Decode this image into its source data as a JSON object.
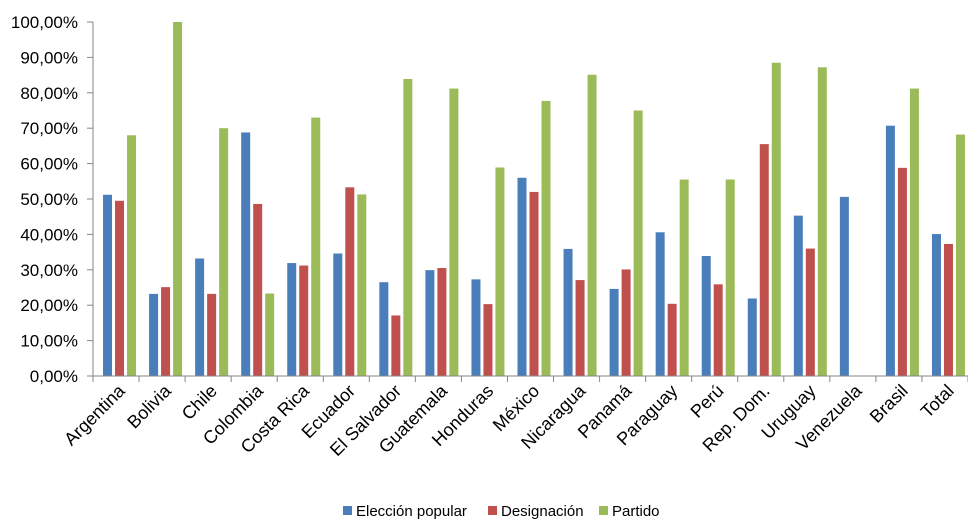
{
  "chart_data": {
    "type": "bar",
    "title": "",
    "xlabel": "",
    "ylabel": "",
    "ylim": [
      0,
      100
    ],
    "yticks": [
      "0,00%",
      "10,00%",
      "20,00%",
      "30,00%",
      "40,00%",
      "50,00%",
      "60,00%",
      "70,00%",
      "80,00%",
      "90,00%",
      "100,00%"
    ],
    "grid": false,
    "legend_position": "bottom",
    "categories": [
      "Argentina",
      "Bolivia",
      "Chile",
      "Colombia",
      "Costa Rica",
      "Ecuador",
      "El Salvador",
      "Guatemala",
      "Honduras",
      "México",
      "Nicaragua",
      "Panamá",
      "Paraguay",
      "Perú",
      "Rep. Dom.",
      "Uruguay",
      "Venezuela",
      "Brasil",
      "Total"
    ],
    "series": [
      {
        "name": "Elección popular",
        "color": "#4a7ebb",
        "values": [
          51.2,
          23.2,
          33.2,
          68.8,
          31.9,
          34.6,
          26.5,
          29.9,
          27.3,
          56.0,
          35.9,
          24.6,
          40.6,
          33.9,
          21.9,
          45.3,
          50.6,
          70.7,
          40.1
        ]
      },
      {
        "name": "Designación",
        "color": "#c0504d",
        "values": [
          49.5,
          25.1,
          23.2,
          48.6,
          31.2,
          53.3,
          17.1,
          30.5,
          20.3,
          52.0,
          27.1,
          30.1,
          20.4,
          25.9,
          65.5,
          36.0,
          null,
          58.8,
          37.3
        ]
      },
      {
        "name": "Partido",
        "color": "#9bbb59",
        "values": [
          68.0,
          100.0,
          70.0,
          23.3,
          73.0,
          51.3,
          83.9,
          81.2,
          58.9,
          77.7,
          85.1,
          75.0,
          55.5,
          55.5,
          88.5,
          87.2,
          null,
          81.2,
          68.2
        ]
      }
    ]
  }
}
